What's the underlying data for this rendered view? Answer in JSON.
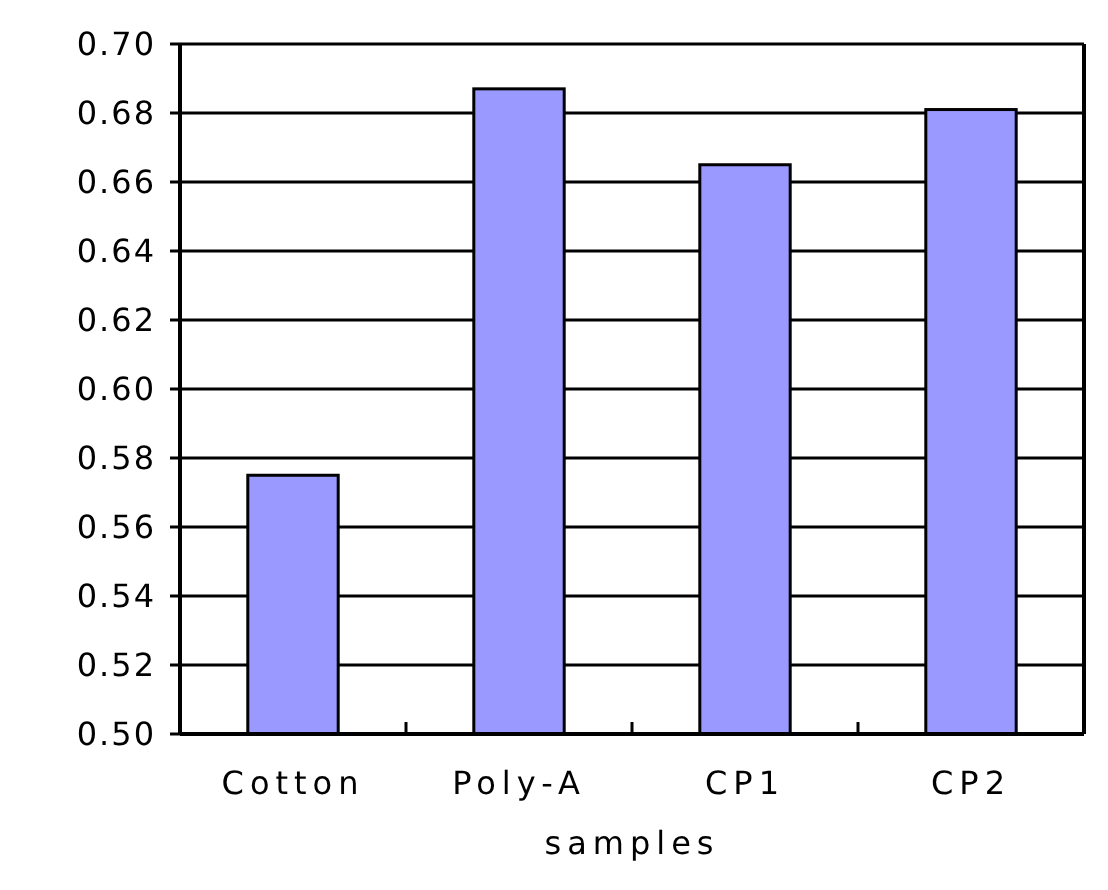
{
  "chart_data": {
    "type": "bar",
    "xlabel": "samples",
    "categories": [
      "Cotton",
      "Poly-A",
      "CP1",
      "CP2"
    ],
    "values": [
      0.575,
      0.687,
      0.665,
      0.681
    ],
    "color": "#9999ff",
    "ylim": [
      0.5,
      0.7
    ],
    "yticks": [
      {
        "value": 0.5,
        "label": "0.50"
      },
      {
        "value": 0.52,
        "label": "0.52"
      },
      {
        "value": 0.54,
        "label": "0.54"
      },
      {
        "value": 0.56,
        "label": "0.56"
      },
      {
        "value": 0.58,
        "label": "0.58"
      },
      {
        "value": 0.6,
        "label": "0.60"
      },
      {
        "value": 0.62,
        "label": "0.62"
      },
      {
        "value": 0.64,
        "label": "0.64"
      },
      {
        "value": 0.66,
        "label": "0.66"
      },
      {
        "value": 0.68,
        "label": "0.68"
      },
      {
        "value": 0.7,
        "label": "0.70"
      }
    ],
    "grid": "y"
  }
}
